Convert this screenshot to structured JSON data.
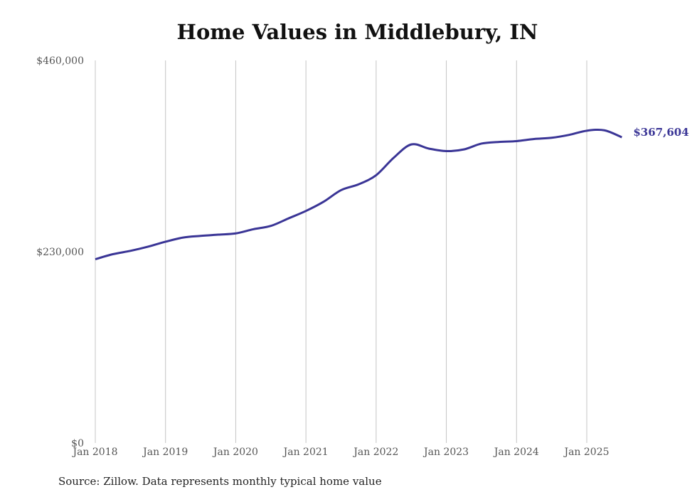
{
  "chart_data": {
    "type": "line",
    "title": "Home Values in Middlebury, IN",
    "xlabel": "",
    "ylabel": "",
    "ylim": [
      0,
      460000
    ],
    "yticks": [
      {
        "value": 0,
        "label": "$0"
      },
      {
        "value": 230000,
        "label": "$230,000"
      },
      {
        "value": 460000,
        "label": "$460,000"
      }
    ],
    "xticks": [
      {
        "value": 2018.0,
        "label": "Jan 2018"
      },
      {
        "value": 2019.0,
        "label": "Jan 2019"
      },
      {
        "value": 2020.0,
        "label": "Jan 2020"
      },
      {
        "value": 2021.0,
        "label": "Jan 2021"
      },
      {
        "value": 2022.0,
        "label": "Jan 2022"
      },
      {
        "value": 2023.0,
        "label": "Jan 2023"
      },
      {
        "value": 2024.0,
        "label": "Jan 2024"
      },
      {
        "value": 2025.0,
        "label": "Jan 2025"
      }
    ],
    "xlim": [
      2018.0,
      2025.5
    ],
    "grid": "vertical",
    "line_color": "#3a3596",
    "series": [
      {
        "x": [
          2018.0,
          2018.25,
          2018.5,
          2018.75,
          2019.0,
          2019.25,
          2019.5,
          2019.75,
          2020.0,
          2020.25,
          2020.5,
          2020.75,
          2021.0,
          2021.25,
          2021.5,
          2021.75,
          2022.0,
          2022.25,
          2022.5,
          2022.75,
          2023.0,
          2023.25,
          2023.5,
          2023.75,
          2024.0,
          2024.25,
          2024.5,
          2024.75,
          2025.0,
          2025.25,
          2025.5
        ],
        "values": [
          221000,
          227000,
          231000,
          236000,
          242000,
          247000,
          249000,
          250500,
          252000,
          257000,
          261000,
          270000,
          279000,
          290000,
          304000,
          311000,
          322000,
          343000,
          359000,
          354000,
          351000,
          353000,
          360000,
          362000,
          363000,
          365500,
          367000,
          370500,
          375500,
          376000,
          367604
        ]
      }
    ],
    "end_label": "$367,604"
  },
  "source": "Source: Zillow. Data represents monthly typical home value"
}
